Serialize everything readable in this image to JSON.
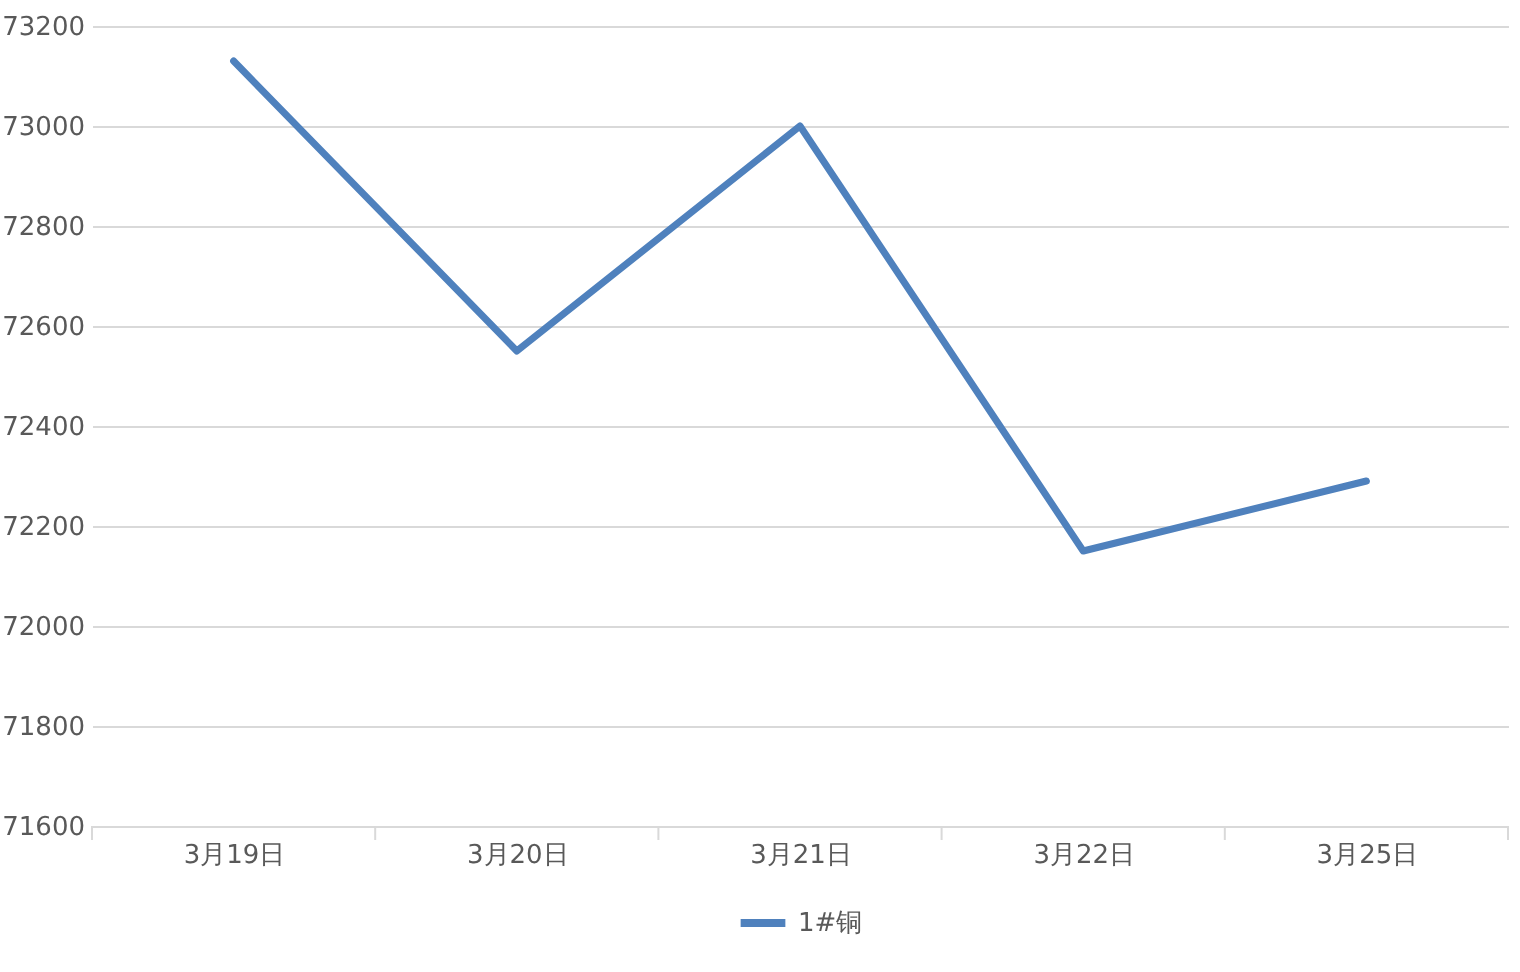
{
  "chart_data": {
    "type": "line",
    "categories": [
      "3月19日",
      "3月20日",
      "3月21日",
      "3月22日",
      "3月25日"
    ],
    "series": [
      {
        "name": "1#铜",
        "color": "#4f81bd",
        "values": [
          73130,
          72550,
          73000,
          72150,
          72290
        ]
      }
    ],
    "ylim": [
      71600,
      73200
    ],
    "yticks": [
      71600,
      71800,
      72000,
      72200,
      72400,
      72600,
      72800,
      73000,
      73200
    ],
    "grid": "y",
    "legend": "bottom",
    "marker": "none",
    "line_style": "solid"
  }
}
